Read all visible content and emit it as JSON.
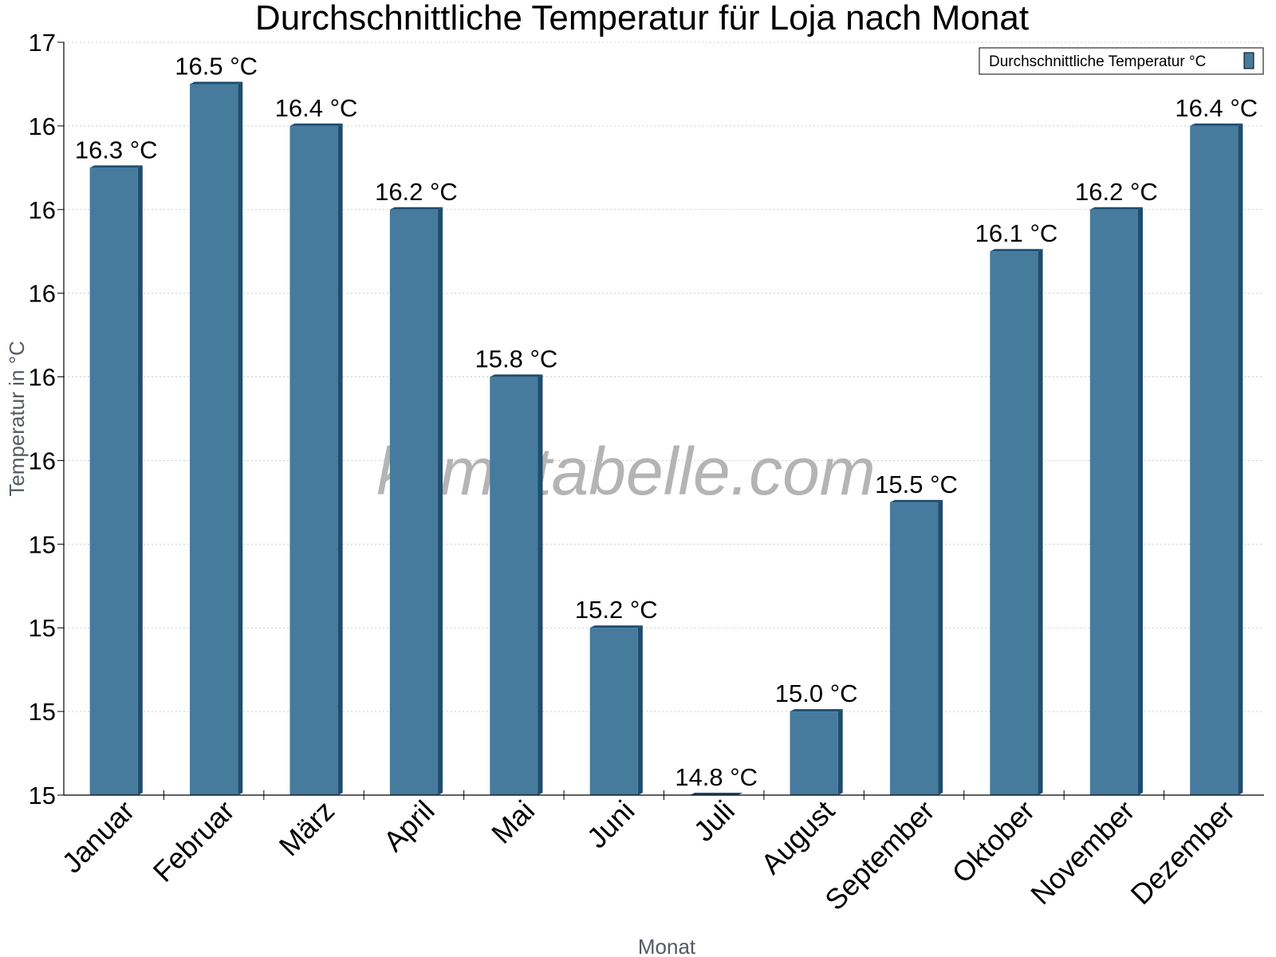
{
  "chart_data": {
    "type": "bar",
    "title": "Durchschnittliche Temperatur für Loja nach Monat",
    "xlabel": "Monat",
    "ylabel": "Temperatur in °C",
    "categories": [
      "Januar",
      "Februar",
      "März",
      "April",
      "Mai",
      "Juni",
      "Juli",
      "August",
      "September",
      "Oktober",
      "November",
      "Dezember"
    ],
    "series": [
      {
        "name": "Durchschnittliche Temperatur °C",
        "color": "#467b9e",
        "values": [
          16.3,
          16.5,
          16.4,
          16.2,
          15.8,
          15.2,
          14.8,
          15.0,
          15.5,
          16.1,
          16.2,
          16.4
        ],
        "labels": [
          "16.3 °C",
          "16.5 °C",
          "16.4 °C",
          "16.2 °C",
          "15.8 °C",
          "15.2 °C",
          "14.8 °C",
          "15.0 °C",
          "15.5 °C",
          "16.1 °C",
          "16.2 °C",
          "16.4 °C"
        ]
      }
    ],
    "ylim": [
      14.8,
      16.6
    ],
    "y_ticks": [
      14.8,
      15.0,
      15.2,
      15.4,
      15.6,
      15.8,
      16.0,
      16.2,
      16.4,
      16.6
    ],
    "y_tick_labels": [
      "15",
      "15",
      "15",
      "15",
      "16",
      "16",
      "16",
      "16",
      "16",
      "17"
    ],
    "grid": true,
    "legend_position": "top-right",
    "watermark": "klimatabelle.com",
    "colors": {
      "bar_face": "#467b9e",
      "bar_edge": "#1e4d6e",
      "grid": "#cccccc",
      "axis_title": "#555a62"
    }
  }
}
